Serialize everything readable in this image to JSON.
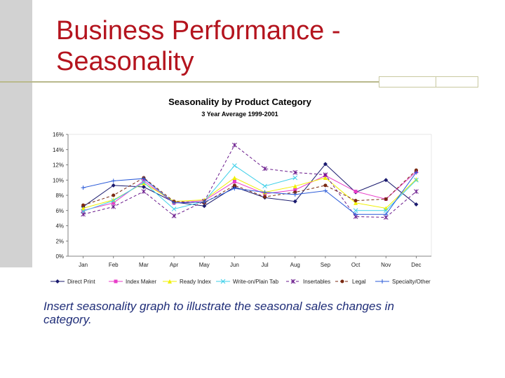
{
  "slide": {
    "title_line1": "Business Performance -",
    "title_line2": "Seasonality",
    "caption": "Insert seasonality graph to illustrate the seasonal sales changes in category."
  },
  "chart_data": {
    "type": "line",
    "title": "Seasonality by  Product Category",
    "subtitle": "3 Year Average 1999-2001",
    "categories": [
      "Jan",
      "Feb",
      "Mar",
      "Apr",
      "May",
      "Jun",
      "Jul",
      "Aug",
      "Sep",
      "Oct",
      "Nov",
      "Dec"
    ],
    "yticks": [
      "0%",
      "2%",
      "4%",
      "6%",
      "8%",
      "10%",
      "12%",
      "14%",
      "16%"
    ],
    "ylim": [
      0,
      16
    ],
    "grid": false,
    "legend_position": "bottom",
    "series": [
      {
        "name": "Direct Print",
        "color": "#1a1a6e",
        "marker": "diamond",
        "dash": "solid",
        "values": [
          6.5,
          9.3,
          9.1,
          7.1,
          6.6,
          9.1,
          7.7,
          7.2,
          12.1,
          8.4,
          10.0,
          6.8
        ]
      },
      {
        "name": "Index Maker",
        "color": "#e83cc8",
        "marker": "square",
        "dash": "solid",
        "values": [
          6.0,
          7.0,
          9.9,
          7.0,
          7.3,
          9.8,
          8.2,
          8.7,
          10.6,
          8.5,
          7.5,
          11.1
        ]
      },
      {
        "name": "Ready Index",
        "color": "#f0f000",
        "marker": "triangle",
        "dash": "solid",
        "values": [
          6.3,
          7.4,
          9.6,
          7.2,
          7.4,
          10.3,
          8.4,
          9.2,
          10.3,
          7.0,
          6.3,
          10.1
        ]
      },
      {
        "name": "Write-on/Plain Tab",
        "color": "#3ccfe8",
        "marker": "x",
        "dash": "solid",
        "values": [
          5.9,
          7.3,
          9.7,
          6.2,
          7.2,
          11.9,
          9.2,
          10.3,
          null,
          6.0,
          6.0,
          10.0
        ]
      },
      {
        "name": "Insertables",
        "color": "#6a1a8c",
        "marker": "star",
        "dash": "dash",
        "values": [
          5.5,
          6.5,
          8.5,
          5.3,
          7.2,
          14.6,
          11.5,
          11.0,
          10.7,
          5.2,
          5.1,
          8.5
        ]
      },
      {
        "name": "Legal",
        "color": "#7a2a12",
        "marker": "circle",
        "dash": "dash",
        "values": [
          6.7,
          8.0,
          10.3,
          7.2,
          7.0,
          9.3,
          7.8,
          8.4,
          9.3,
          7.3,
          7.5,
          11.3
        ]
      },
      {
        "name": "Specialty/Other",
        "color": "#2a5ad8",
        "marker": "plus",
        "dash": "solid",
        "values": [
          9.0,
          9.9,
          10.2,
          7.0,
          7.1,
          8.9,
          8.4,
          8.1,
          8.6,
          5.5,
          5.5,
          11.0
        ]
      }
    ]
  }
}
